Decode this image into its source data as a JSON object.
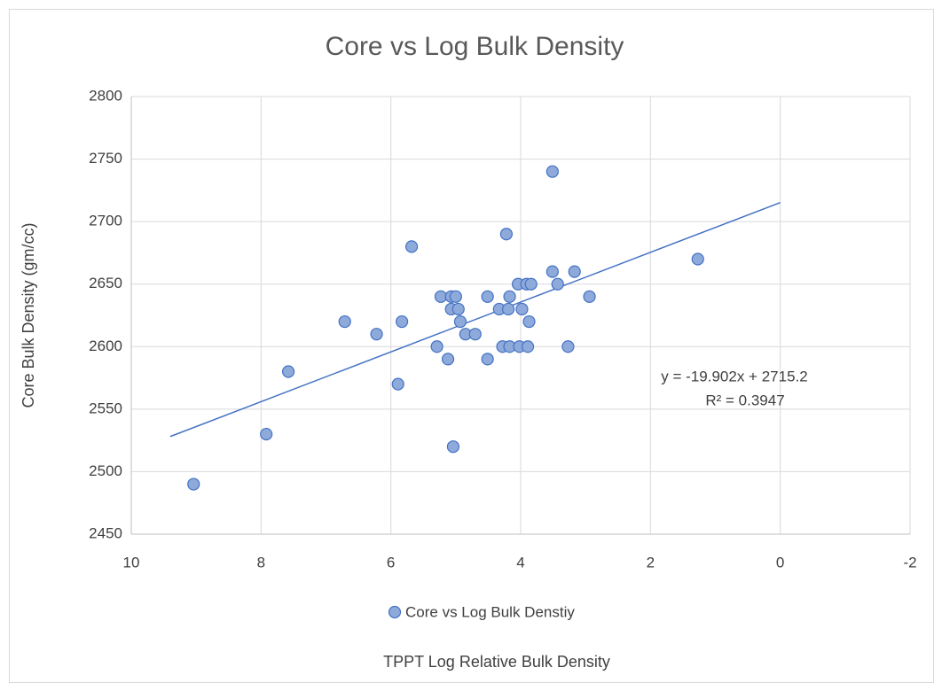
{
  "chart_data": {
    "type": "scatter",
    "title": "Core vs Log Bulk Density",
    "x_label": "TPPT Log Relative Bulk Density",
    "y_label": "Core Bulk Density  (gm/cc)",
    "xlim": [
      10,
      -2
    ],
    "xticks": [
      10,
      8,
      6,
      4,
      2,
      0,
      -2
    ],
    "ylim": [
      2450,
      2800
    ],
    "yticks": [
      2450,
      2500,
      2550,
      2600,
      2650,
      2700,
      2750,
      2800
    ],
    "grid": true,
    "legend": "bottom",
    "series": [
      {
        "name": "Core vs Log Bulk Denstiy",
        "color": "#4472c4",
        "x": [
          9.04,
          7.92,
          7.58,
          6.71,
          6.22,
          5.83,
          5.68,
          5.89,
          5.29,
          5.23,
          5.12,
          5.07,
          5.07,
          5.0,
          4.96,
          4.93,
          5.04,
          4.85,
          4.7,
          4.51,
          4.51,
          4.33,
          4.28,
          4.22,
          4.19,
          4.17,
          4.17,
          4.04,
          4.02,
          3.98,
          3.91,
          3.89,
          3.87,
          3.84,
          3.51,
          3.51,
          3.43,
          3.27,
          3.17,
          2.94,
          1.27
        ],
        "values": [
          2490,
          2530,
          2580,
          2620,
          2610,
          2620,
          2680,
          2570,
          2600,
          2640,
          2590,
          2640,
          2630,
          2640,
          2630,
          2620,
          2520,
          2610,
          2610,
          2640,
          2590,
          2630,
          2600,
          2690,
          2630,
          2640,
          2600,
          2650,
          2600,
          2630,
          2650,
          2600,
          2620,
          2650,
          2740,
          2660,
          2650,
          2600,
          2660,
          2640,
          2670
        ]
      }
    ],
    "trendline": {
      "equation": "y = -19.902x + 2715.2",
      "r_squared": "R² = 0.3947",
      "slope": -19.902,
      "intercept": 2715.2,
      "x_range": [
        9.4,
        0
      ]
    }
  }
}
